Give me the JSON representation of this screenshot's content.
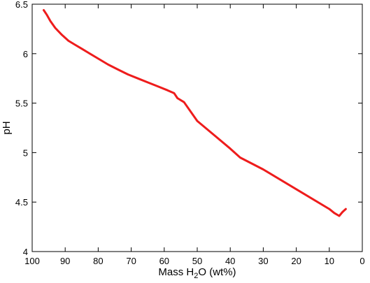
{
  "chart_data": {
    "type": "line",
    "title": "",
    "xlabel": "Mass H₂O (wt%)",
    "xlabel_parts": {
      "pre": "Mass H",
      "sub": "2",
      "post": "O (wt%)"
    },
    "ylabel": "pH",
    "xlim": [
      100,
      0
    ],
    "ylim": [
      4,
      6.5
    ],
    "x_reversed": true,
    "grid": false,
    "xticks": [
      100,
      90,
      80,
      70,
      60,
      50,
      40,
      30,
      20,
      10,
      0
    ],
    "yticks": [
      4,
      4.5,
      5,
      5.5,
      6,
      6.5
    ],
    "ytick_labels": [
      "4",
      "4.5",
      "5",
      "5.5",
      "6",
      "6.5"
    ],
    "series": [
      {
        "color": "#ee1c1c",
        "x": [
          96.5,
          95.5,
          94.5,
          93,
          91,
          89,
          87,
          85,
          83,
          80,
          77,
          74,
          71,
          68,
          65,
          62,
          59,
          57,
          56,
          54,
          50,
          45,
          40,
          37,
          30,
          20,
          10,
          8.5,
          7,
          6,
          5
        ],
        "y": [
          6.44,
          6.39,
          6.33,
          6.26,
          6.19,
          6.13,
          6.09,
          6.05,
          6.01,
          5.95,
          5.89,
          5.84,
          5.79,
          5.75,
          5.71,
          5.67,
          5.63,
          5.6,
          5.55,
          5.51,
          5.32,
          5.18,
          5.04,
          4.95,
          4.83,
          4.63,
          4.43,
          4.39,
          4.36,
          4.4,
          4.43
        ]
      }
    ]
  }
}
